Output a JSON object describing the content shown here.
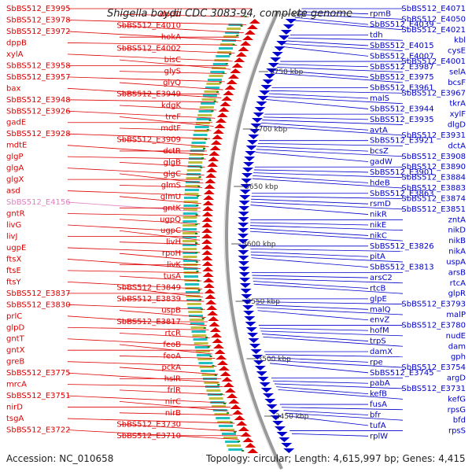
{
  "title": "Shigella boydii CDC 3083-94, complete genome",
  "accession_text": "Accession: NC_010658",
  "topology_text": "Topology: circular; Length: 4,615,997 bp; Genes: 4,415",
  "colors": {
    "forward": "#dd0000",
    "reverse": "#0000cc",
    "highlight": "#e080c0",
    "backbone": "#999999",
    "tick": "#228822"
  },
  "ticks": [
    "kbp",
    "3750 kbp",
    "3700 kbp",
    "3650 kbp",
    "3600 kbp",
    "3550 kbp",
    "3500 kbp",
    "3450 kbp"
  ],
  "left_labels": [
    "SbBS512_E3995",
    "dppD",
    "SbBS512_E3978",
    "SbBS512_E4010",
    "SbBS512_E3972",
    "hokA",
    "dppB",
    "SbBS512_E4002",
    "xylA",
    "bisC",
    "SbBS512_E3958",
    "glyS",
    "SbBS512_E3957",
    "glyQ",
    "bax",
    "SbBS512_E3949",
    "SbBS512_E3948",
    "kdgK",
    "SbBS512_E3926",
    "treF",
    "gadE",
    "mdtF",
    "SbBS512_E3928",
    "SbBS512_E3909",
    "mdtE",
    "dctR",
    "glgP",
    "glgB",
    "glgA",
    "glgC",
    "glgX",
    "glmS",
    "asd",
    "glmU",
    "SbBS512_E4156",
    "gntK",
    "gntR",
    "ugpQ",
    "livG",
    "ugpC",
    "livJ",
    "livH",
    "ugpE",
    "rpoH",
    "ftsX",
    "livK",
    "ftsE",
    "tusA",
    "ftsY",
    "SbBS512_E3849",
    "SbBS512_E3837",
    "SbBS512_E3839",
    "SbBS512_E3830",
    "uspB",
    "prlC",
    "SbBS512_E3817",
    "glpD",
    "rtcR",
    "gntT",
    "feoB",
    "gntX",
    "feoA",
    "greB",
    "pckA",
    "SbBS512_E3775",
    "hslR",
    "mrcA",
    "frlR",
    "SbBS512_E3751",
    "nirC",
    "nirD",
    "nirB",
    "tsgA",
    "SbBS512_E3730",
    "SbBS512_E3722",
    "SbBS512_E3710"
  ],
  "right_labels": [
    "SbBS512_E4071",
    "rpmB",
    "SbBS512_E4050",
    "SbBS512_E4039",
    "SbBS512_E4021",
    "tdh",
    "kbl",
    "SbBS512_E4015",
    "cysE",
    "SbBS512_E4007",
    "SbBS512_E4001",
    "SbBS512_E3987",
    "selA",
    "SbBS512_E3975",
    "bcsF",
    "SbBS512_E3961",
    "SbBS512_E3967",
    "malS",
    "tkrA",
    "SbBS512_E3944",
    "xylF",
    "SbBS512_E3935",
    "dlgD",
    "avtA",
    "SbBS512_E3931",
    "SbBS512_E3921",
    "dctA",
    "bcsZ",
    "SbBS512_E3908",
    "gadW",
    "SbBS512_E3890",
    "SbBS512_E3901",
    "SbBS512_E3884",
    "hdeB",
    "SbBS512_E3883",
    "SbBS512_E3863",
    "SbBS512_E3874",
    "rsmD",
    "SbBS512_E3851",
    "nikR",
    "zntA",
    "nikE",
    "nikD",
    "nikC",
    "nikB",
    "SbBS512_E3826",
    "nikA",
    "pitA",
    "uspA",
    "SbBS512_E3813",
    "arsB",
    "arsC2",
    "rtcA",
    "rtcB",
    "glpR",
    "glpE",
    "SbBS512_E3793",
    "malQ",
    "malP",
    "envZ",
    "SbBS512_E3780",
    "hofM",
    "nudE",
    "trpS",
    "dam",
    "damX",
    "gph",
    "rpe",
    "SbBS512_E3754",
    "SbBS512_E3745",
    "argD",
    "pabA",
    "SbBS512_E3731",
    "kefB",
    "kefG",
    "fusA",
    "rpsG",
    "bfr",
    "bfd",
    "tufA",
    "rpsS",
    "rplW"
  ]
}
